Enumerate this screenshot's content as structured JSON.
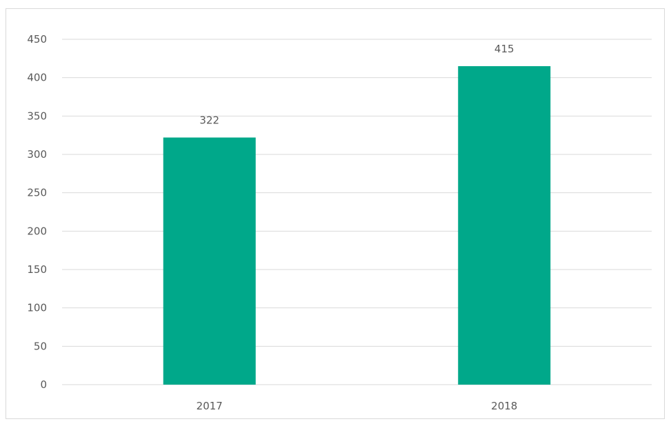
{
  "chart_data": {
    "type": "bar",
    "title": "",
    "xlabel": "",
    "ylabel": "",
    "categories": [
      "2017",
      "2018"
    ],
    "values": [
      322,
      415
    ],
    "data_labels": [
      "322",
      "415"
    ],
    "ylim": [
      0,
      450
    ],
    "yticks": [
      0,
      50,
      100,
      150,
      200,
      250,
      300,
      350,
      400,
      450
    ],
    "grid": true,
    "legend": "none",
    "bar_color": "#00A88A",
    "grid_color": "#d9d9d9"
  }
}
